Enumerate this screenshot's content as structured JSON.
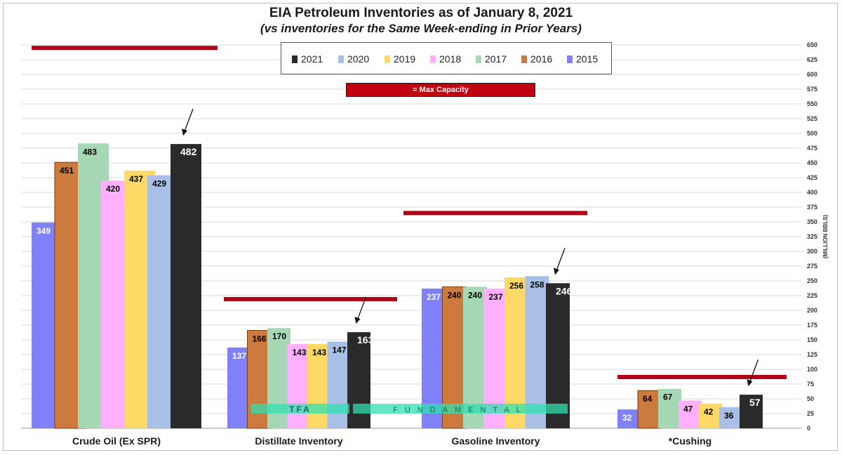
{
  "chart_data": {
    "type": "bar",
    "title": "EIA Petroleum Inventories as of January 8, 2021",
    "subtitle": "(vs  inventories for the Same Week-ending in Prior Years)",
    "ylabel": "(MILLION BBLS)",
    "ylim": [
      0,
      650
    ],
    "ytick_step": 25,
    "grid": true,
    "categories": [
      "Crude Oil (Ex SPR)",
      "Distillate Inventory",
      "Gasoline Inventory",
      "*Cushing"
    ],
    "series": [
      {
        "name": "2015",
        "color": "#8080f8",
        "label_color": "#ffffff",
        "values": [
          349,
          137,
          237,
          32
        ]
      },
      {
        "name": "2016",
        "color": "#cc7a3e",
        "label_color": "#000000",
        "values": [
          451,
          166,
          240,
          64
        ]
      },
      {
        "name": "2017",
        "color": "#a7d8b5",
        "label_color": "#000000",
        "values": [
          483,
          170,
          240,
          67
        ]
      },
      {
        "name": "2018",
        "color": "#ffb0ff",
        "label_color": "#000000",
        "values": [
          420,
          143,
          237,
          47
        ]
      },
      {
        "name": "2019",
        "color": "#ffd966",
        "label_color": "#000000",
        "values": [
          437,
          143,
          256,
          42
        ]
      },
      {
        "name": "2020",
        "color": "#a9bfe6",
        "label_color": "#000000",
        "values": [
          429,
          147,
          258,
          36
        ]
      },
      {
        "name": "2021",
        "color": "#2a2a2a",
        "label_color": "#ffffff",
        "values": [
          482,
          163,
          246,
          57
        ]
      }
    ],
    "max_capacity": [
      645,
      219,
      365,
      87
    ],
    "max_capacity_color": "#b00016",
    "legend": {
      "placement": "top-center",
      "order": [
        "2021",
        "2020",
        "2019",
        "2018",
        "2017",
        "2016",
        "2015"
      ]
    },
    "annotations": {
      "max_capacity_label": "= Max Capacity",
      "watermark": [
        "TFA",
        "FUNDAMENTAL"
      ]
    }
  }
}
